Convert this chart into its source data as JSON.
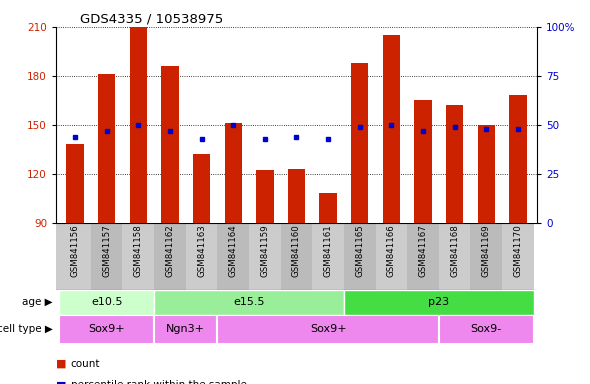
{
  "title": "GDS4335 / 10538975",
  "samples": [
    "GSM841156",
    "GSM841157",
    "GSM841158",
    "GSM841162",
    "GSM841163",
    "GSM841164",
    "GSM841159",
    "GSM841160",
    "GSM841161",
    "GSM841165",
    "GSM841166",
    "GSM841167",
    "GSM841168",
    "GSM841169",
    "GSM841170"
  ],
  "counts": [
    138,
    181,
    210,
    186,
    132,
    151,
    122,
    123,
    108,
    188,
    205,
    165,
    162,
    150,
    168
  ],
  "percentile_ranks": [
    44,
    47,
    50,
    47,
    43,
    50,
    43,
    44,
    43,
    49,
    50,
    47,
    49,
    48,
    48
  ],
  "ymin": 90,
  "ymax": 210,
  "yticks_left": [
    90,
    120,
    150,
    180,
    210
  ],
  "yticks_right": [
    0,
    25,
    50,
    75,
    100
  ],
  "age_groups": [
    {
      "label": "e10.5",
      "start": 0,
      "end": 3,
      "color": "#ccffcc"
    },
    {
      "label": "e15.5",
      "start": 3,
      "end": 9,
      "color": "#99ee99"
    },
    {
      "label": "p23",
      "start": 9,
      "end": 15,
      "color": "#44dd44"
    }
  ],
  "cell_type_groups": [
    {
      "label": "Sox9+",
      "start": 0,
      "end": 3,
      "color": "#ee88ee"
    },
    {
      "label": "Ngn3+",
      "start": 3,
      "end": 5,
      "color": "#ee88ee"
    },
    {
      "label": "Sox9+",
      "start": 5,
      "end": 12,
      "color": "#ee88ee"
    },
    {
      "label": "Sox9-",
      "start": 12,
      "end": 15,
      "color": "#ee88ee"
    }
  ],
  "bar_color": "#cc2200",
  "dot_color": "#0000cc",
  "tick_color_left": "#cc2200",
  "tick_color_right": "#0000cc",
  "bar_width": 0.55,
  "pct_min": 0,
  "pct_max": 100
}
